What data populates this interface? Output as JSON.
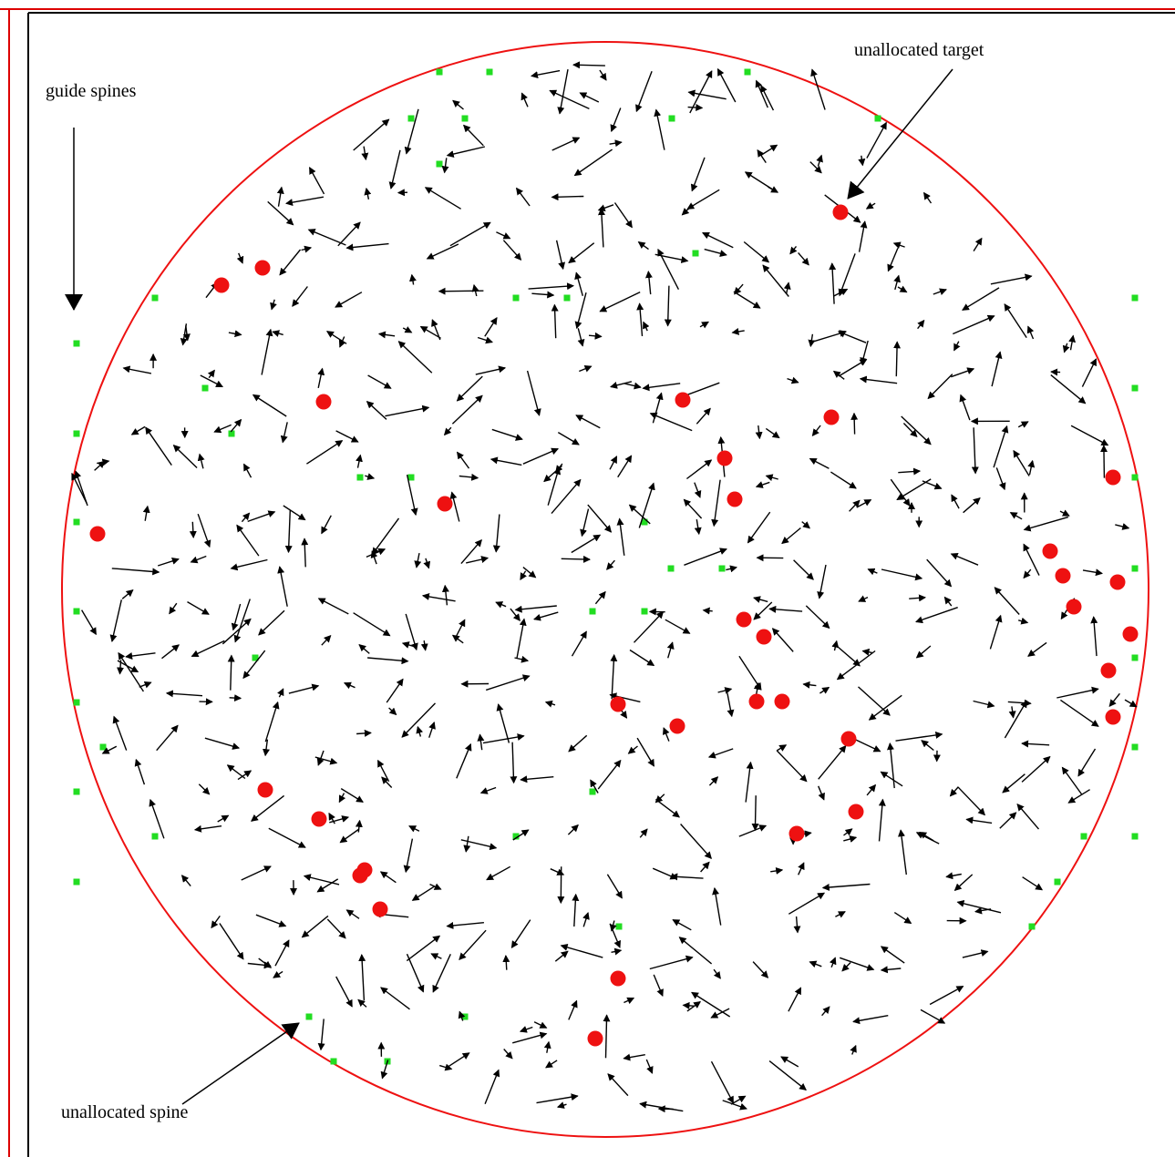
{
  "annotations": {
    "guide_spines": "guide spines",
    "unallocated_target": "unallocated target",
    "unallocated_spine": "unallocated spine"
  },
  "colors": {
    "frame_outer": "#dd0000",
    "frame_inner": "#000000",
    "circle": "#ee1111",
    "spine": "#22dd22",
    "target": "#ee1111",
    "arrow": "#000000"
  },
  "icons": {
    "spine": "green-square-marker",
    "target": "red-dot-marker",
    "vector": "arrow-glyph"
  }
}
